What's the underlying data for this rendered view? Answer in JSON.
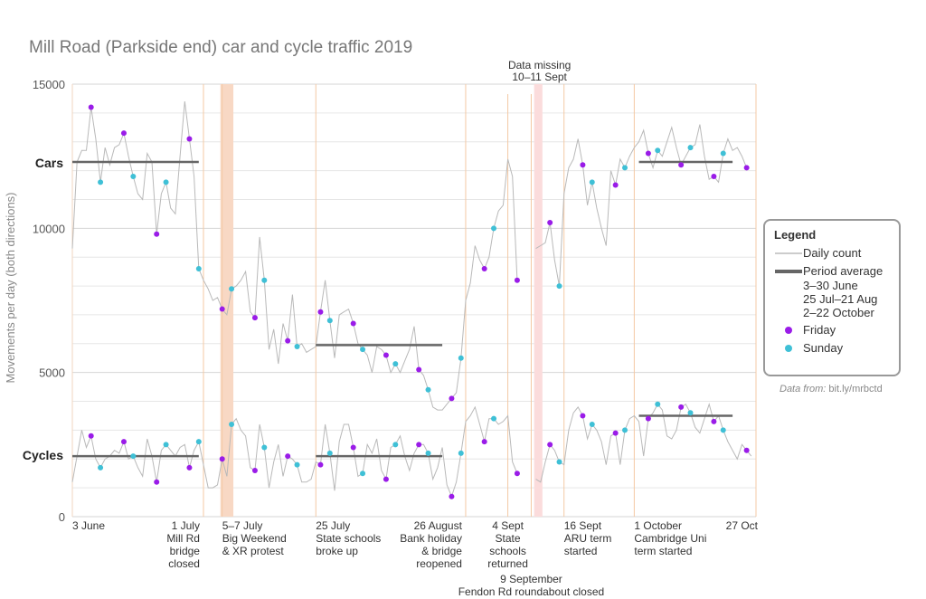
{
  "chart_data": {
    "type": "line",
    "title": "Mill Road (Parkside end) car and cycle traffic 2019",
    "ylabel": "Movements per day (both directions)",
    "ylim": [
      0,
      15000
    ],
    "yticks": [
      0,
      5000,
      10000,
      15000
    ],
    "grid": true,
    "legend_position": "right",
    "x_start": "2019-06-03",
    "x_end": "2019-10-27",
    "series": [
      {
        "name": "Cars",
        "values": [
          9300,
          12300,
          12700,
          12700,
          14200,
          13100,
          11600,
          12800,
          12200,
          12800,
          12900,
          13300,
          12500,
          11800,
          11200,
          11000,
          12600,
          12300,
          9800,
          11200,
          11600,
          10700,
          10500,
          12500,
          14400,
          13100,
          11800,
          8600,
          8200,
          7900,
          7500,
          7600,
          7200,
          7000,
          7900,
          8000,
          8200,
          8500,
          7100,
          6900,
          9700,
          8200,
          5800,
          6500,
          5300,
          6700,
          6100,
          7700,
          5900,
          6000,
          5700,
          5800,
          5900,
          7100,
          8200,
          6800,
          5500,
          7000,
          7100,
          7200,
          6700,
          6000,
          5800,
          5600,
          5000,
          5900,
          5800,
          5600,
          5000,
          5300,
          5000,
          5400,
          5800,
          6600,
          5100,
          4900,
          4400,
          3800,
          3700,
          3700,
          3900,
          4100,
          4300,
          5500,
          7500,
          8100,
          9400,
          8900,
          8600,
          9000,
          10000,
          10600,
          10800,
          12400,
          11800,
          8200,
          null,
          null,
          null,
          9300,
          9400,
          9500,
          10200,
          8900,
          8000,
          11200,
          12100,
          12400,
          13100,
          12200,
          10800,
          11600,
          10700,
          10000,
          9400,
          12000,
          11500,
          12400,
          12100,
          12500,
          12800,
          13000,
          13400,
          12600,
          12100,
          12700,
          12500,
          13000,
          13500,
          12800,
          12200,
          12500,
          12800,
          12900,
          13600,
          12500,
          11700,
          11800,
          11600,
          12600,
          13100,
          12700,
          12800,
          12500,
          12100
        ],
        "average_periods": [
          {
            "label": "3–30 June",
            "value": 12300
          },
          {
            "label": "25 Jul–21 Aug",
            "value": 5950
          },
          {
            "label": "2–22 October",
            "value": 12300
          }
        ]
      },
      {
        "name": "Cycles",
        "values": [
          1200,
          2100,
          3000,
          2400,
          2800,
          2000,
          1700,
          2000,
          2100,
          2300,
          2200,
          2600,
          2000,
          2100,
          1700,
          1400,
          2700,
          2100,
          1200,
          2300,
          2500,
          2300,
          2100,
          2400,
          2500,
          1700,
          2300,
          2600,
          1800,
          1000,
          1000,
          1100,
          2000,
          1400,
          3200,
          3400,
          3000,
          2800,
          1700,
          1600,
          3200,
          2400,
          1000,
          1900,
          2500,
          1400,
          2100,
          2000,
          1800,
          1200,
          1200,
          1300,
          1900,
          1800,
          3200,
          2200,
          900,
          2600,
          3200,
          3200,
          2400,
          1400,
          1500,
          2500,
          2200,
          2700,
          1600,
          1300,
          2400,
          2500,
          2800,
          2100,
          1600,
          2200,
          2500,
          2500,
          2200,
          1300,
          1700,
          2400,
          1100,
          700,
          1200,
          2200,
          3300,
          3500,
          3800,
          3200,
          2600,
          3400,
          3400,
          3200,
          3300,
          3500,
          1900,
          1500,
          null,
          null,
          null,
          1300,
          1200,
          1900,
          2500,
          2300,
          1900,
          1800,
          3000,
          3600,
          3800,
          3500,
          2700,
          3200,
          3000,
          2600,
          1800,
          2800,
          2900,
          1800,
          3000,
          3400,
          3500,
          3300,
          2100,
          3400,
          3600,
          3900,
          3700,
          2800,
          2700,
          3000,
          3800,
          3900,
          3600,
          3100,
          2900,
          3400,
          3900,
          3300,
          3500,
          3000,
          2600,
          2300,
          2000,
          2500,
          2300,
          2100
        ],
        "average_periods": [
          {
            "label": "3–30 June",
            "value": 2100
          },
          {
            "label": "25 Jul–21 Aug",
            "value": 2100
          },
          {
            "label": "2–22 October",
            "value": 3500
          }
        ]
      }
    ],
    "x_tick_labels": [
      "3 June",
      "1 July",
      "5–7 July",
      "25 July",
      "26 August",
      "4 Sept",
      "16 Sept",
      "1 October",
      "27 Oct"
    ],
    "annotations": [
      {
        "date": "2019-07-01",
        "lines": [
          "1 July",
          "Mill Rd",
          "bridge",
          "closed"
        ],
        "align": "right"
      },
      {
        "date": "2019-07-05",
        "lines": [
          "5–7 July",
          "Big Weekend",
          "& XR protest"
        ],
        "align": "left"
      },
      {
        "date": "2019-07-25",
        "lines": [
          "25 July",
          "State schools",
          "broke up"
        ],
        "align": "left"
      },
      {
        "date": "2019-08-26",
        "lines": [
          "26 August",
          "Bank holiday",
          "& bridge",
          "reopened"
        ],
        "align": "right"
      },
      {
        "date": "2019-09-04",
        "lines": [
          "4 Sept",
          "State",
          "schools",
          "returned"
        ],
        "align": "middle"
      },
      {
        "date": "2019-09-09",
        "lines": [
          "9 September",
          "Fendon Rd roundabout closed"
        ],
        "align": "middle"
      },
      {
        "date": "2019-09-16",
        "lines": [
          "16 Sept",
          "ARU term",
          "started"
        ],
        "align": "left"
      },
      {
        "date": "2019-10-01",
        "lines": [
          "1 October",
          "Cambridge Uni",
          "term started"
        ],
        "align": "left"
      },
      {
        "date": "2019-10-27",
        "lines": [
          "27 Oct"
        ],
        "align": "right"
      }
    ],
    "shaded_periods": [
      {
        "start": "2019-07-05",
        "end": "2019-07-07",
        "color": "#f8d8c4",
        "label": ""
      },
      {
        "start": "2019-09-10",
        "end": "2019-09-11",
        "color": "#fbdcdc",
        "label": "Data missing"
      }
    ],
    "missing_data_label": [
      "Data missing",
      "10–11 Sept"
    ],
    "series_labels": [
      "Cars",
      "Cycles"
    ],
    "colors": {
      "daily": "#b9b9b9",
      "average": "#666666",
      "friday": "#9a1ce8",
      "sunday": "#3fc0d6",
      "event_line": "#f4c9a4",
      "grid": "#e6e6e6"
    }
  },
  "legend": {
    "title": "Legend",
    "daily": "Daily count",
    "average": "Period average",
    "periods": [
      "3–30 June",
      "25 Jul–21 Aug",
      "2–22 October"
    ],
    "friday": "Friday",
    "sunday": "Sunday"
  },
  "source": {
    "prefix": "Data from:",
    "link": "bit.ly/mrbctd"
  }
}
